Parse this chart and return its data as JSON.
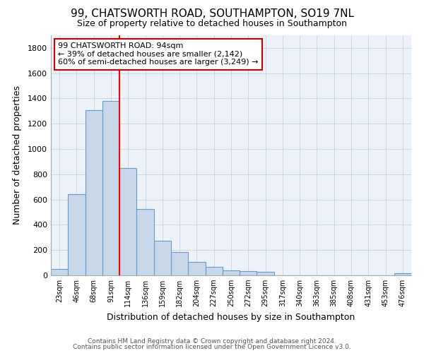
{
  "title1": "99, CHATSWORTH ROAD, SOUTHAMPTON, SO19 7NL",
  "title2": "Size of property relative to detached houses in Southampton",
  "xlabel": "Distribution of detached houses by size in Southampton",
  "ylabel": "Number of detached properties",
  "categories": [
    "23sqm",
    "46sqm",
    "68sqm",
    "91sqm",
    "114sqm",
    "136sqm",
    "159sqm",
    "182sqm",
    "204sqm",
    "227sqm",
    "250sqm",
    "272sqm",
    "295sqm",
    "317sqm",
    "340sqm",
    "363sqm",
    "385sqm",
    "408sqm",
    "431sqm",
    "453sqm",
    "476sqm"
  ],
  "values": [
    50,
    640,
    1310,
    1380,
    850,
    525,
    275,
    185,
    105,
    68,
    40,
    35,
    28,
    0,
    0,
    0,
    0,
    0,
    0,
    0,
    18
  ],
  "bar_color": "#c8d8ea",
  "bar_edge_color": "#6699cc",
  "red_line_index": 3,
  "annotation_line1": "99 CHATSWORTH ROAD: 94sqm",
  "annotation_line2": "← 39% of detached houses are smaller (2,142)",
  "annotation_line3": "60% of semi-detached houses are larger (3,249) →",
  "annotation_box_color": "#ffffff",
  "annotation_box_edge": "#cc0000",
  "ylim": [
    0,
    1900
  ],
  "yticks": [
    0,
    200,
    400,
    600,
    800,
    1000,
    1200,
    1400,
    1600,
    1800
  ],
  "footer1": "Contains HM Land Registry data © Crown copyright and database right 2024.",
  "footer2": "Contains public sector information licensed under the Open Government Licence v3.0.",
  "bg_color": "#edf2f8",
  "grid_color": "#c0ccd8",
  "title1_fontsize": 11,
  "title2_fontsize": 9
}
